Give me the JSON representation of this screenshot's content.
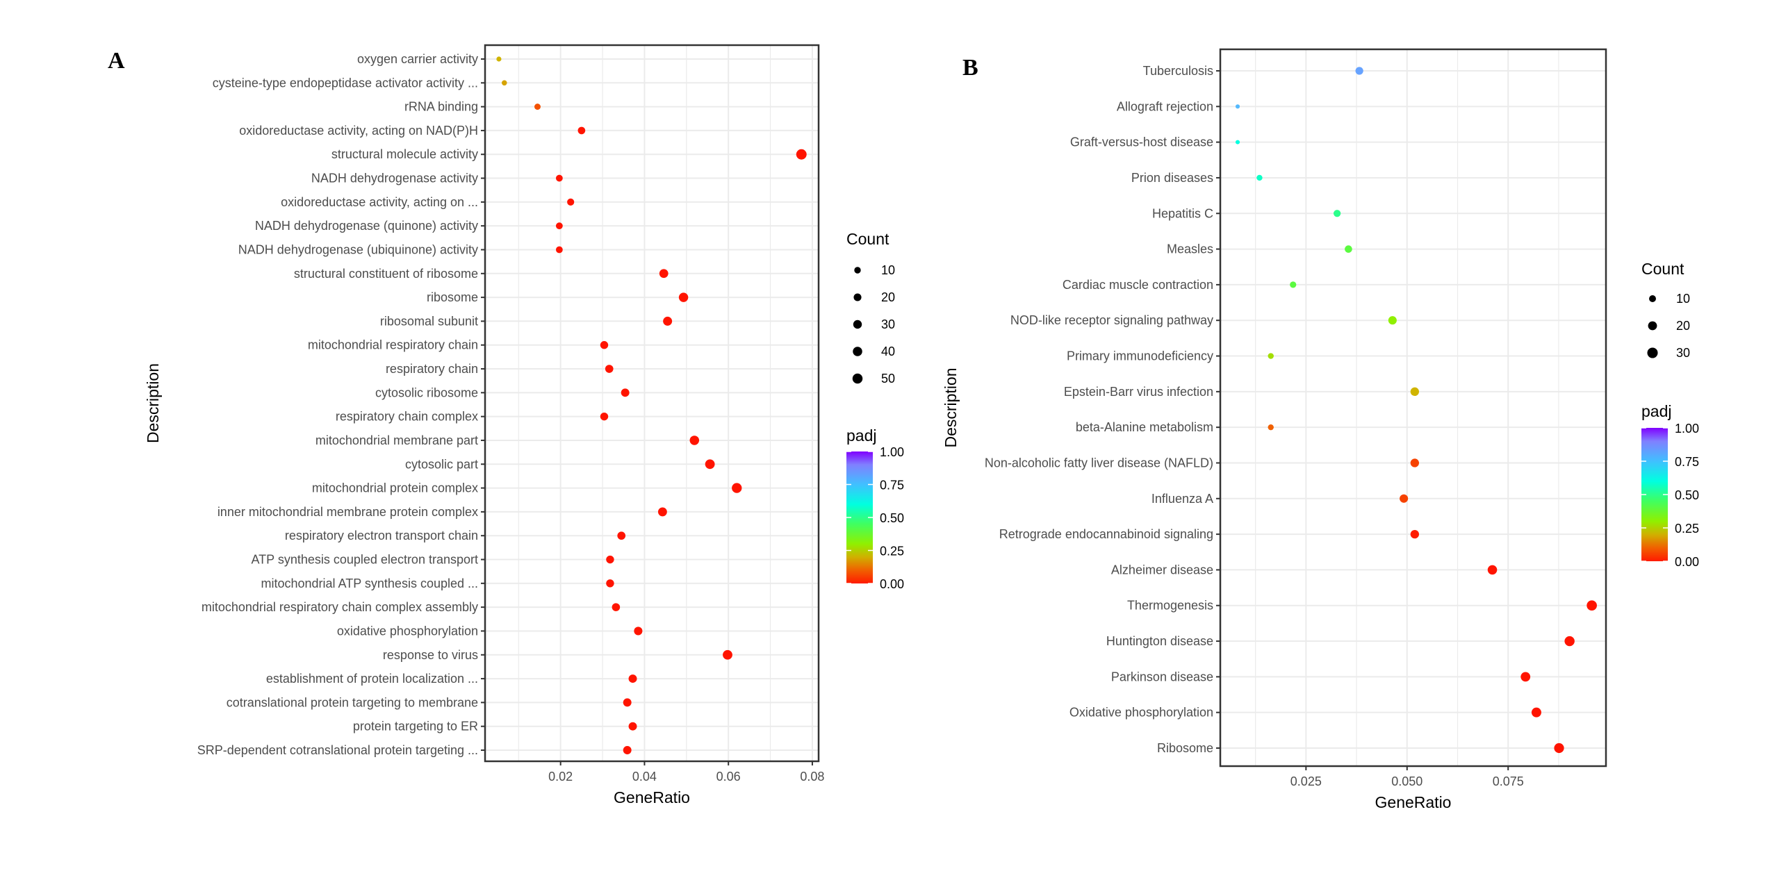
{
  "chart_data": [
    {
      "type": "scatter",
      "panel_label": "A",
      "xlabel": "GeneRatio",
      "ylabel": "Description",
      "xlim": [
        0.002,
        0.0815
      ],
      "xticks": [
        0.02,
        0.04,
        0.06,
        0.08
      ],
      "xtick_labels": [
        "0.02",
        "0.04",
        "0.06",
        "0.08"
      ],
      "grid": true,
      "legend_placement": "right",
      "size_legend": {
        "title": "Count",
        "values": [
          10,
          20,
          30,
          40,
          50
        ],
        "labels": [
          "10",
          "20",
          "30",
          "40",
          "50"
        ]
      },
      "color_legend": {
        "title": "padj",
        "range": [
          0,
          1
        ],
        "ticks": [
          1.0,
          0.75,
          0.5,
          0.25,
          0.0
        ],
        "tick_labels": [
          "1.00",
          "0.75",
          "0.50",
          "0.25",
          "0.00"
        ]
      },
      "points": [
        {
          "description": "oxygen carrier activity",
          "gene_ratio": 0.0053,
          "count": 2,
          "padj": 0.2
        },
        {
          "description": "cysteine-type endopeptidase activator activity ...",
          "gene_ratio": 0.0066,
          "count": 3,
          "padj": 0.18
        },
        {
          "description": "rRNA binding",
          "gene_ratio": 0.0145,
          "count": 8,
          "padj": 0.08
        },
        {
          "description": "oxidoreductase activity, acting on NAD(P)H",
          "gene_ratio": 0.025,
          "count": 17,
          "padj": 0.0
        },
        {
          "description": "structural molecule activity",
          "gene_ratio": 0.0774,
          "count": 55,
          "padj": 0.0
        },
        {
          "description": "NADH dehydrogenase activity",
          "gene_ratio": 0.0197,
          "count": 12,
          "padj": 0.0
        },
        {
          "description": "oxidoreductase activity, acting on ...",
          "gene_ratio": 0.0224,
          "count": 14,
          "padj": 0.0
        },
        {
          "description": "NADH dehydrogenase (quinone) activity",
          "gene_ratio": 0.0197,
          "count": 12,
          "padj": 0.0
        },
        {
          "description": "NADH dehydrogenase (ubiquinone) activity",
          "gene_ratio": 0.0197,
          "count": 12,
          "padj": 0.0
        },
        {
          "description": "structural constituent of ribosome",
          "gene_ratio": 0.0446,
          "count": 33,
          "padj": 0.0
        },
        {
          "description": "ribosome",
          "gene_ratio": 0.0493,
          "count": 39,
          "padj": 0.0
        },
        {
          "description": "ribosomal subunit",
          "gene_ratio": 0.0455,
          "count": 35,
          "padj": 0.0
        },
        {
          "description": "mitochondrial respiratory chain",
          "gene_ratio": 0.0304,
          "count": 22,
          "padj": 0.0
        },
        {
          "description": "respiratory chain",
          "gene_ratio": 0.0316,
          "count": 24,
          "padj": 0.0
        },
        {
          "description": "cytosolic ribosome",
          "gene_ratio": 0.0354,
          "count": 26,
          "padj": 0.0
        },
        {
          "description": "respiratory chain complex",
          "gene_ratio": 0.0304,
          "count": 22,
          "padj": 0.0
        },
        {
          "description": "mitochondrial membrane part",
          "gene_ratio": 0.0519,
          "count": 40,
          "padj": 0.0
        },
        {
          "description": "cytosolic part",
          "gene_ratio": 0.0556,
          "count": 43,
          "padj": 0.0
        },
        {
          "description": "mitochondrial protein complex",
          "gene_ratio": 0.062,
          "count": 48,
          "padj": 0.0
        },
        {
          "description": "inner mitochondrial membrane protein complex",
          "gene_ratio": 0.0443,
          "count": 34,
          "padj": 0.0
        },
        {
          "description": "respiratory electron transport chain",
          "gene_ratio": 0.0345,
          "count": 24,
          "padj": 0.0
        },
        {
          "description": "ATP synthesis coupled electron transport",
          "gene_ratio": 0.0318,
          "count": 22,
          "padj": 0.0
        },
        {
          "description": "mitochondrial ATP synthesis coupled ...",
          "gene_ratio": 0.0318,
          "count": 22,
          "padj": 0.0
        },
        {
          "description": "mitochondrial respiratory chain complex assembly",
          "gene_ratio": 0.0332,
          "count": 23,
          "padj": 0.0
        },
        {
          "description": "oxidative phosphorylation",
          "gene_ratio": 0.0385,
          "count": 27,
          "padj": 0.0
        },
        {
          "description": "response to virus",
          "gene_ratio": 0.0598,
          "count": 43,
          "padj": 0.0
        },
        {
          "description": "establishment of protein localization ...",
          "gene_ratio": 0.0372,
          "count": 26,
          "padj": 0.0
        },
        {
          "description": "cotranslational protein targeting to membrane",
          "gene_ratio": 0.0359,
          "count": 26,
          "padj": 0.0
        },
        {
          "description": "protein targeting to ER",
          "gene_ratio": 0.0372,
          "count": 26,
          "padj": 0.0
        },
        {
          "description": "SRP-dependent cotranslational protein targeting ...",
          "gene_ratio": 0.0359,
          "count": 26,
          "padj": 0.0
        }
      ]
    },
    {
      "type": "scatter",
      "panel_label": "B",
      "xlabel": "GeneRatio",
      "ylabel": "Description",
      "xlim": [
        0.0038,
        0.0992
      ],
      "xticks": [
        0.025,
        0.05,
        0.075
      ],
      "xtick_labels": [
        "0.025",
        "0.050",
        "0.075"
      ],
      "grid": true,
      "legend_placement": "right",
      "size_legend": {
        "title": "Count",
        "values": [
          10,
          20,
          30
        ],
        "labels": [
          "10",
          "20",
          "30"
        ]
      },
      "color_legend": {
        "title": "padj",
        "range": [
          0,
          1
        ],
        "ticks": [
          1.0,
          0.75,
          0.5,
          0.25,
          0.0
        ],
        "tick_labels": [
          "1.00",
          "0.75",
          "0.50",
          "0.25",
          "0.00"
        ]
      },
      "points": [
        {
          "description": "Tuberculosis",
          "gene_ratio": 0.0382,
          "count": 14,
          "padj": 0.8
        },
        {
          "description": "Allograft rejection",
          "gene_ratio": 0.0081,
          "count": 2,
          "padj": 0.74
        },
        {
          "description": "Graft-versus-host disease",
          "gene_ratio": 0.0081,
          "count": 2,
          "padj": 0.6
        },
        {
          "description": "Prion diseases",
          "gene_ratio": 0.0135,
          "count": 6,
          "padj": 0.57
        },
        {
          "description": "Hepatitis C",
          "gene_ratio": 0.0327,
          "count": 11,
          "padj": 0.5
        },
        {
          "description": "Measles",
          "gene_ratio": 0.0355,
          "count": 12,
          "padj": 0.4
        },
        {
          "description": "Cardiac muscle contraction",
          "gene_ratio": 0.0218,
          "count": 8,
          "padj": 0.4
        },
        {
          "description": "NOD-like receptor signaling pathway",
          "gene_ratio": 0.0464,
          "count": 17,
          "padj": 0.3
        },
        {
          "description": "Primary immunodeficiency",
          "gene_ratio": 0.0163,
          "count": 6,
          "padj": 0.27
        },
        {
          "description": "Epstein-Barr virus infection",
          "gene_ratio": 0.0519,
          "count": 18,
          "padj": 0.2
        },
        {
          "description": "beta-Alanine metabolism",
          "gene_ratio": 0.0163,
          "count": 6,
          "padj": 0.1
        },
        {
          "description": "Non-alcoholic fatty liver disease (NAFLD)",
          "gene_ratio": 0.0519,
          "count": 18,
          "padj": 0.06
        },
        {
          "description": "Influenza A",
          "gene_ratio": 0.0492,
          "count": 17,
          "padj": 0.06
        },
        {
          "description": "Retrograde endocannabinoid signaling",
          "gene_ratio": 0.0519,
          "count": 18,
          "padj": 0.01
        },
        {
          "description": "Alzheimer disease",
          "gene_ratio": 0.0711,
          "count": 23,
          "padj": 0.0
        },
        {
          "description": "Thermogenesis",
          "gene_ratio": 0.0957,
          "count": 28,
          "padj": 0.0
        },
        {
          "description": "Huntington disease",
          "gene_ratio": 0.0902,
          "count": 27,
          "padj": 0.0
        },
        {
          "description": "Parkinson disease",
          "gene_ratio": 0.0793,
          "count": 24,
          "padj": 0.0
        },
        {
          "description": "Oxidative phosphorylation",
          "gene_ratio": 0.082,
          "count": 25,
          "padj": 0.0
        },
        {
          "description": "Ribosome",
          "gene_ratio": 0.0876,
          "count": 26,
          "padj": 0.0
        }
      ]
    }
  ],
  "colorscale": [
    "#ff0000",
    "#ff6000",
    "#c8c800",
    "#80ff00",
    "#00ffff",
    "#8080ff",
    "#8000ff"
  ]
}
